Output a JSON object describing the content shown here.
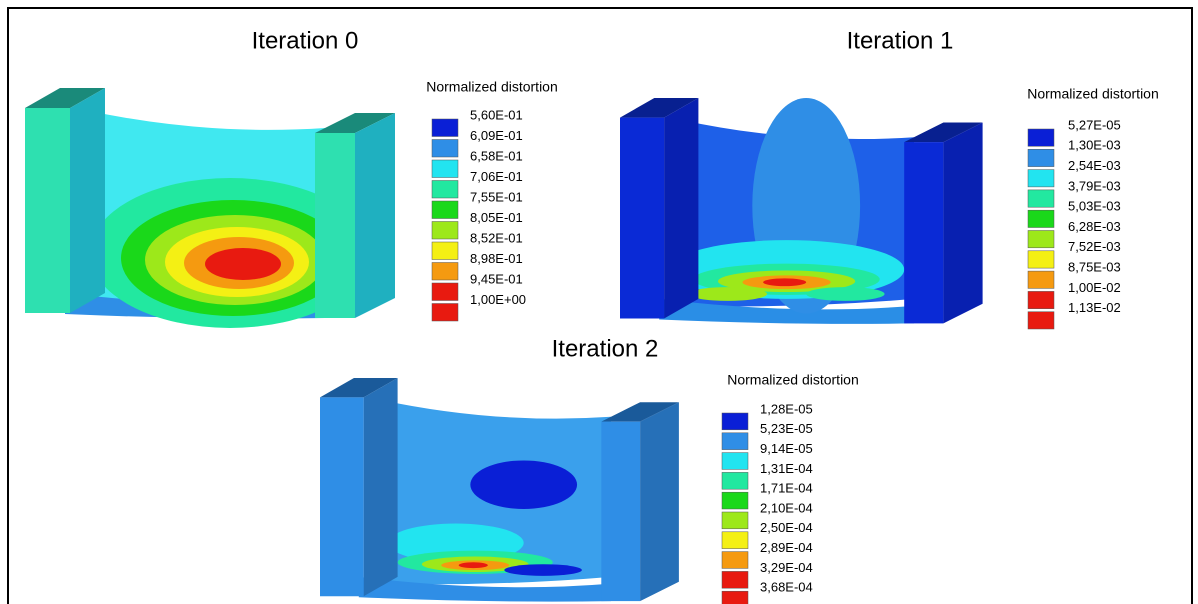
{
  "panels": [
    {
      "title": "Iteration 0",
      "legend": {
        "title": "Normalized distortion",
        "labels": [
          "5,60E-01",
          "6,09E-01",
          "6,58E-01",
          "7,06E-01",
          "7,55E-01",
          "8,05E-01",
          "8,52E-01",
          "8,98E-01",
          "9,45E-01",
          "1,00E+00"
        ]
      }
    },
    {
      "title": "Iteration 1",
      "legend": {
        "title": "Normalized distortion",
        "labels": [
          "5,27E-05",
          "1,30E-03",
          "2,54E-03",
          "3,79E-03",
          "5,03E-03",
          "6,28E-03",
          "7,52E-03",
          "8,75E-03",
          "1,00E-02",
          "1,13E-02"
        ]
      }
    },
    {
      "title": "Iteration 2",
      "legend": {
        "title": "Normalized distortion",
        "labels": [
          "1,28E-05",
          "5,23E-05",
          "9,14E-05",
          "1,31E-04",
          "1,71E-04",
          "2,10E-04",
          "2,50E-04",
          "2,89E-04",
          "3,29E-04",
          "3,68E-04"
        ]
      }
    }
  ]
}
